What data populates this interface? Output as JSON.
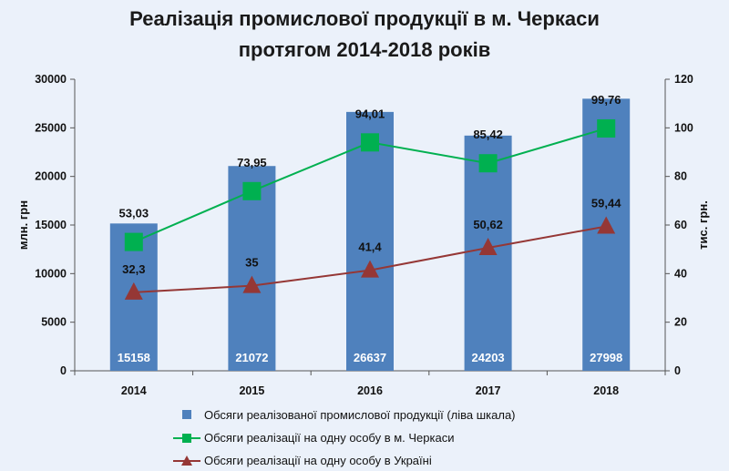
{
  "chart_data": {
    "type": "bar",
    "title_line1": "Реалізація промислової продукції в м. Черкаси",
    "title_line2": "протягом 2014-2018 років",
    "categories": [
      "2014",
      "2015",
      "2016",
      "2017",
      "2018"
    ],
    "y_left": {
      "label": "млн. грн",
      "min": 0,
      "max": 30000,
      "step": 5000,
      "ticks": [
        "0",
        "5000",
        "10000",
        "15000",
        "20000",
        "25000",
        "30000"
      ]
    },
    "y_right": {
      "label": "тис. грн.",
      "min": 0,
      "max": 120,
      "step": 20,
      "ticks": [
        "0",
        "20",
        "40",
        "60",
        "80",
        "100",
        "120"
      ]
    },
    "grid": false,
    "legend_position": "bottom",
    "series": [
      {
        "name": "Обсяги реалізованої промислової продукції (ліва шкала)",
        "kind": "bar",
        "axis": "left",
        "color": "#4f81bd",
        "values": [
          15158,
          21072,
          26637,
          24203,
          27998
        ],
        "labels": [
          "15158",
          "21072",
          "26637",
          "24203",
          "27998"
        ]
      },
      {
        "name": "Обсяги реалізації на одну особу в м. Черкаси",
        "kind": "line",
        "marker": "square",
        "axis": "right",
        "color": "#00b050",
        "values": [
          53.03,
          73.95,
          94.01,
          85.42,
          99.76
        ],
        "labels": [
          "53,03",
          "73,95",
          "94,01",
          "85,42",
          "99,76"
        ]
      },
      {
        "name": "Обсяги реалізації на одну особу в Україні",
        "kind": "line",
        "marker": "triangle",
        "axis": "right",
        "color": "#953735",
        "values": [
          32.3,
          35,
          41.4,
          50.62,
          59.44
        ],
        "labels": [
          "32,3",
          "35",
          "41,4",
          "50,62",
          "59,44"
        ]
      }
    ]
  }
}
